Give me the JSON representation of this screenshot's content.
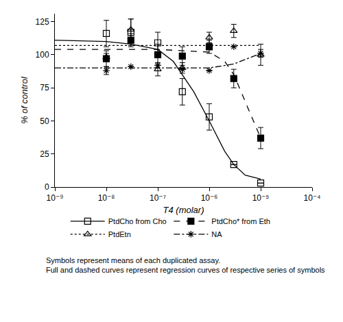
{
  "chart_data": {
    "type": "scatter",
    "x_label": "T4 (molar)",
    "y_label": "% of control",
    "log": "x",
    "grid": false,
    "legend": "bottom",
    "xlim": [
      1e-09,
      0.0001
    ],
    "xticks": [
      {
        "value": 1e-09,
        "label": "10⁻⁹"
      },
      {
        "value": 1e-08,
        "label": "10⁻⁸"
      },
      {
        "value": 1e-07,
        "label": "10⁻⁷"
      },
      {
        "value": 1e-06,
        "label": "10⁻⁶"
      },
      {
        "value": 1e-05,
        "label": "10⁻⁵"
      },
      {
        "value": 0.0001,
        "label": "10⁻⁴"
      }
    ],
    "ylim": [
      0,
      131
    ],
    "yticks": [
      0,
      25,
      50,
      75,
      100,
      125
    ],
    "note": [
      "Symbols represent means of each duplicated assay.",
      "Full and dashed curves represent regression curves of respective series of symbols"
    ],
    "series": [
      {
        "name": "PtdCho from Cho",
        "color": "#000000",
        "marker": "square-open",
        "line_style": "solid",
        "x": [
          1e-08,
          3e-08,
          1e-07,
          3e-07,
          1e-06,
          3e-06,
          1e-05
        ],
        "values": [
          116,
          117,
          109,
          72,
          53,
          17,
          3
        ],
        "error": [
          10,
          10,
          8,
          10,
          10,
          0,
          0
        ],
        "curve": {
          "x": [
            1e-09,
            1e-08,
            3e-08,
            1e-07,
            2e-07,
            3e-07,
            5e-07,
            1e-06,
            2e-06,
            3e-06,
            5e-06,
            1e-05
          ],
          "values": [
            111,
            110,
            108,
            104,
            95,
            85,
            72,
            50,
            27,
            17,
            9,
            6
          ]
        }
      },
      {
        "name": "PtdCho* from Eth",
        "color": "#000000",
        "marker": "square",
        "line_style": "dash",
        "x": [
          1e-08,
          3e-08,
          1e-07,
          3e-07,
          1e-06,
          3e-06,
          1e-05
        ],
        "values": [
          97,
          111,
          100,
          99,
          106,
          82,
          37
        ],
        "error": [
          6,
          5,
          8,
          7,
          5,
          7,
          8
        ],
        "curve": {
          "x": [
            1e-09,
            1e-07,
            1e-06,
            2e-06,
            3e-06,
            5e-06,
            1e-05
          ],
          "values": [
            104,
            104,
            102,
            95,
            85,
            65,
            37
          ]
        }
      },
      {
        "name": "PtdEtn",
        "color": "#000000",
        "marker": "triangle-up-open",
        "line_style": "dot",
        "x": [
          1e-08,
          3e-08,
          1e-07,
          3e-07,
          1e-06,
          3e-06,
          1e-05
        ],
        "values": [
          98,
          119,
          89,
          90,
          113,
          118,
          100
        ],
        "error": [
          3,
          8,
          5,
          4,
          4,
          5,
          8
        ],
        "curve": {
          "x": [
            1e-09,
            1e-05
          ],
          "values": [
            107,
            107
          ]
        }
      },
      {
        "name": "NA",
        "color": "#000000",
        "marker": "asterisk-open",
        "line_style": "dashdot",
        "x": [
          1e-08,
          3e-08,
          1e-07,
          3e-07,
          1e-06,
          3e-06,
          1e-05
        ],
        "values": [
          88,
          91,
          92,
          89,
          88,
          106,
          101
        ],
        "error": [
          3,
          0,
          0,
          0,
          0,
          0,
          3
        ],
        "curve": {
          "x": [
            1e-09,
            1e-06,
            3e-06,
            1e-05
          ],
          "values": [
            90,
            90,
            93,
            101
          ]
        }
      }
    ]
  }
}
